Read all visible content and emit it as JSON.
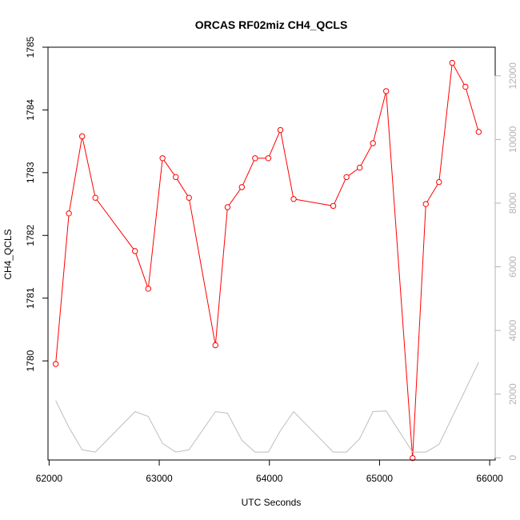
{
  "chart_data": {
    "type": "line",
    "title": "ORCAS RF02miz CH4_QCLS",
    "xlabel": "UTC Seconds",
    "ylabel": "CH4_QCLS",
    "xlim": [
      61990,
      66050
    ],
    "ylim": [
      1778.42,
      1785.0
    ],
    "y2lim": [
      -70,
      12900
    ],
    "xticks": [
      62000,
      63000,
      64000,
      65000,
      66000
    ],
    "xtick_labels": [
      "62000",
      "63000",
      "64000",
      "65000",
      "66000"
    ],
    "yticks": [
      1780,
      1781,
      1782,
      1783,
      1784,
      1785
    ],
    "ytick_labels": [
      "1780",
      "1781",
      "1782",
      "1783",
      "1784",
      "1785"
    ],
    "y2ticks": [
      0,
      2000,
      4000,
      6000,
      8000,
      10000,
      12000
    ],
    "y2tick_labels": [
      "0",
      "2000",
      "4000",
      "6000",
      "8000",
      "10000",
      "12000"
    ],
    "grid": false,
    "series": [
      {
        "axis": "left",
        "color": "#ff0000",
        "style": "line+markers",
        "x": [
          62060,
          62180,
          62300,
          62420,
          62780,
          62900,
          63030,
          63150,
          63270,
          63510,
          63620,
          63750,
          63870,
          63990,
          64100,
          64220,
          64580,
          64700,
          64820,
          64940,
          65060,
          65300,
          65420,
          65540,
          65660,
          65780,
          65900
        ],
        "values": [
          1779.95,
          1782.35,
          1783.58,
          1782.6,
          1781.75,
          1781.15,
          1783.23,
          1782.93,
          1782.6,
          1780.25,
          1782.45,
          1782.77,
          1783.23,
          1783.23,
          1783.68,
          1782.58,
          1782.47,
          1782.93,
          1783.08,
          1783.47,
          1784.3,
          1778.45,
          1782.5,
          1782.85,
          1784.75,
          1784.37,
          1783.65
        ]
      },
      {
        "axis": "right",
        "color": "#bebebe",
        "style": "line",
        "x": [
          62060,
          62180,
          62300,
          62420,
          62780,
          62900,
          63030,
          63150,
          63270,
          63510,
          63620,
          63750,
          63870,
          63990,
          64100,
          64220,
          64580,
          64700,
          64820,
          64940,
          65060,
          65300,
          65420,
          65540,
          65900
        ],
        "values": [
          1800,
          950,
          250,
          180,
          1450,
          1300,
          450,
          180,
          250,
          1450,
          1400,
          550,
          180,
          180,
          850,
          1450,
          180,
          180,
          600,
          1450,
          1470,
          180,
          180,
          420,
          3000
        ]
      }
    ]
  }
}
